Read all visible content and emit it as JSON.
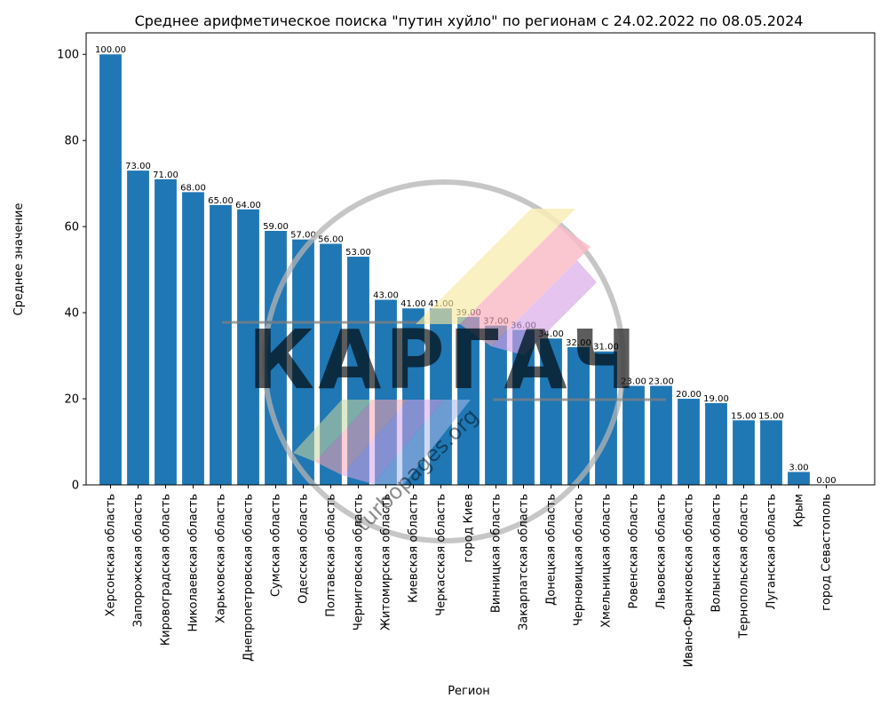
{
  "chart_data": {
    "type": "bar",
    "title": "Среднее арифметическое поиска \"путин хуйло\" по регионам с 24.02.2022 по 08.05.2024",
    "xlabel": "Регион",
    "ylabel": "Среднее значение",
    "ylim": [
      0,
      105
    ],
    "yticks": [
      0,
      20,
      40,
      60,
      80,
      100
    ],
    "grid": false,
    "bar_color": "#1f77b4",
    "value_format_decimals": 2,
    "categories": [
      "Херсонская область",
      "Запорожская область",
      "Кировоградская область",
      "Николаевская область",
      "Харьковская область",
      "Днепропетровская область",
      "Сумская область",
      "Одесская область",
      "Полтавская область",
      "Черниговская область",
      "Житомирская область",
      "Киевская область",
      "Черкасская область",
      "город Киев",
      "Винницкая область",
      "Закарпатская область",
      "Донецкая область",
      "Черновицкая область",
      "Хмельницкая область",
      "Ровенская область",
      "Львовская область",
      "Ивано-Франковская область",
      "Волынская область",
      "Тернопольская область",
      "Луганская область",
      "Крым",
      "город Севастополь"
    ],
    "values": [
      100,
      73,
      71,
      68,
      65,
      64,
      59,
      57,
      56,
      53,
      43,
      41,
      41,
      39,
      37,
      36,
      34,
      32,
      31,
      23,
      23,
      20,
      19,
      15,
      15,
      3,
      0
    ]
  },
  "watermark": {
    "text": "КАРГАЧ",
    "subtext": "turbopages.org",
    "ring_color": "#b3b3b3",
    "text_color": "#808080",
    "stripe_colors": [
      "#f8e9a1",
      "#f7a6b4",
      "#d6a4e8",
      "#a8b8e8"
    ]
  }
}
